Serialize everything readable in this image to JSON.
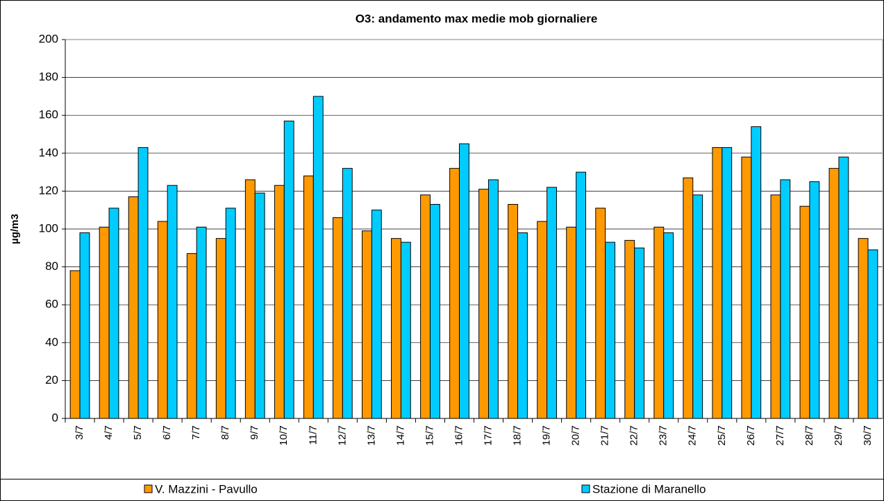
{
  "chart_data": {
    "type": "bar",
    "title": "O3: andamento max medie mob giornaliere",
    "y_label": "µg/m3",
    "categories": [
      "3/7",
      "4/7",
      "5/7",
      "6/7",
      "7/7",
      "8/7",
      "9/7",
      "10/7",
      "11/7",
      "12/7",
      "13/7",
      "14/7",
      "15/7",
      "16/7",
      "17/7",
      "18/7",
      "19/7",
      "20/7",
      "21/7",
      "22/7",
      "23/7",
      "24/7",
      "25/7",
      "26/7",
      "27/7",
      "28/7",
      "29/7",
      "30/7"
    ],
    "series": [
      {
        "name": "V. Mazzini - Pavullo",
        "color": "#FF9900",
        "values": [
          78,
          101,
          117,
          104,
          87,
          95,
          126,
          123,
          128,
          106,
          99,
          95,
          118,
          132,
          121,
          113,
          104,
          101,
          111,
          94,
          101,
          127,
          143,
          138,
          118,
          112,
          132,
          95
        ]
      },
      {
        "name": "Stazione di Maranello",
        "color": "#00CCFF",
        "values": [
          98,
          111,
          143,
          123,
          101,
          111,
          119,
          157,
          170,
          132,
          110,
          93,
          113,
          145,
          126,
          98,
          122,
          130,
          93,
          90,
          98,
          118,
          143,
          154,
          126,
          125,
          138,
          89
        ]
      }
    ],
    "ylim": [
      0,
      200
    ],
    "yticks": [
      0,
      20,
      40,
      60,
      80,
      100,
      120,
      140,
      160,
      180,
      200
    ],
    "grid": true,
    "legend": "bottom"
  }
}
